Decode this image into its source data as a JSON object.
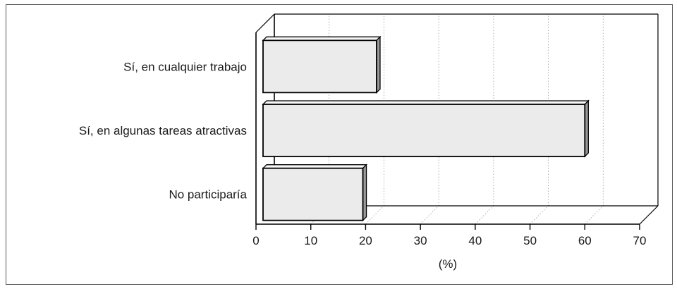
{
  "chart_data": {
    "type": "bar",
    "orientation": "horizontal",
    "three_d": true,
    "categories": [
      "Sí, en cualquier trabajo",
      "Sí, en algunas tareas atractivas",
      "No participaría"
    ],
    "values": [
      22,
      60,
      19.5
    ],
    "xlabel": "(%)",
    "xlim": [
      0,
      70
    ],
    "xticks": [
      "0",
      "10",
      "20",
      "30",
      "40",
      "50",
      "60",
      "70"
    ],
    "grid": "vertical dotted",
    "colors": {
      "bar_fill": "#ebebeb",
      "bar_edge": "#000000",
      "axis": "#000000",
      "grid": "#9a9a9a"
    }
  }
}
